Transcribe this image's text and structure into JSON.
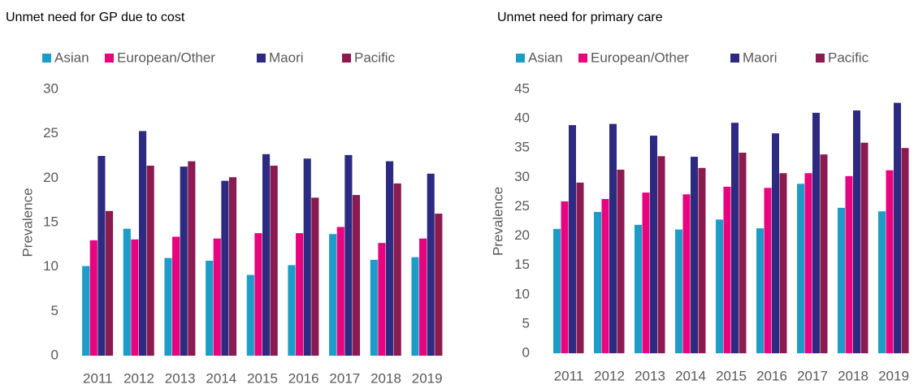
{
  "chart_data": [
    {
      "type": "bar",
      "title": "Unmet need for GP due to cost",
      "y_label": "Prevalence",
      "categories": [
        "2011",
        "2012",
        "2013",
        "2014",
        "2015",
        "2016",
        "2017",
        "2018",
        "2019"
      ],
      "series": [
        {
          "name": "Asian",
          "color": "#1e9cc8",
          "values": [
            10.1,
            14.3,
            11.0,
            10.7,
            9.1,
            10.2,
            13.7,
            10.8,
            11.1
          ]
        },
        {
          "name": "European/Other",
          "color": "#e8037f",
          "values": [
            13.0,
            13.1,
            13.4,
            13.2,
            13.8,
            13.8,
            14.5,
            12.7,
            13.2
          ]
        },
        {
          "name": "Maori",
          "color": "#2d2a82",
          "values": [
            22.5,
            25.3,
            21.3,
            19.7,
            22.7,
            22.2,
            22.6,
            21.9,
            20.5
          ]
        },
        {
          "name": "Pacific",
          "color": "#8a1a50",
          "values": [
            16.3,
            21.4,
            21.9,
            20.1,
            21.4,
            17.8,
            18.1,
            19.4,
            16.0
          ]
        }
      ],
      "ylim": [
        0,
        30
      ],
      "yticks": [
        0,
        5,
        10,
        15,
        20,
        25,
        30
      ],
      "legend": "top"
    },
    {
      "type": "bar",
      "title": "Unmet need for primary care",
      "y_label": "Prevalence",
      "categories": [
        "2011",
        "2012",
        "2013",
        "2014",
        "2015",
        "2016",
        "2017",
        "2018",
        "2019"
      ],
      "series": [
        {
          "name": "Asian",
          "color": "#1e9cc8",
          "values": [
            21.2,
            24.1,
            21.9,
            21.1,
            22.8,
            21.3,
            28.9,
            24.8,
            24.2
          ]
        },
        {
          "name": "European/Other",
          "color": "#e8037f",
          "values": [
            25.9,
            26.3,
            27.4,
            27.1,
            28.4,
            28.2,
            30.7,
            30.2,
            31.2
          ]
        },
        {
          "name": "Maori",
          "color": "#2d2a82",
          "values": [
            38.9,
            39.1,
            37.1,
            33.5,
            39.3,
            37.5,
            41.0,
            41.4,
            42.7
          ]
        },
        {
          "name": "Pacific",
          "color": "#8a1a50",
          "values": [
            29.1,
            31.3,
            33.6,
            31.6,
            34.2,
            30.7,
            33.9,
            35.9,
            35.0
          ]
        }
      ],
      "ylim": [
        0,
        45
      ],
      "yticks": [
        0,
        5,
        10,
        15,
        20,
        25,
        30,
        35,
        40,
        45
      ],
      "legend": "top"
    }
  ]
}
